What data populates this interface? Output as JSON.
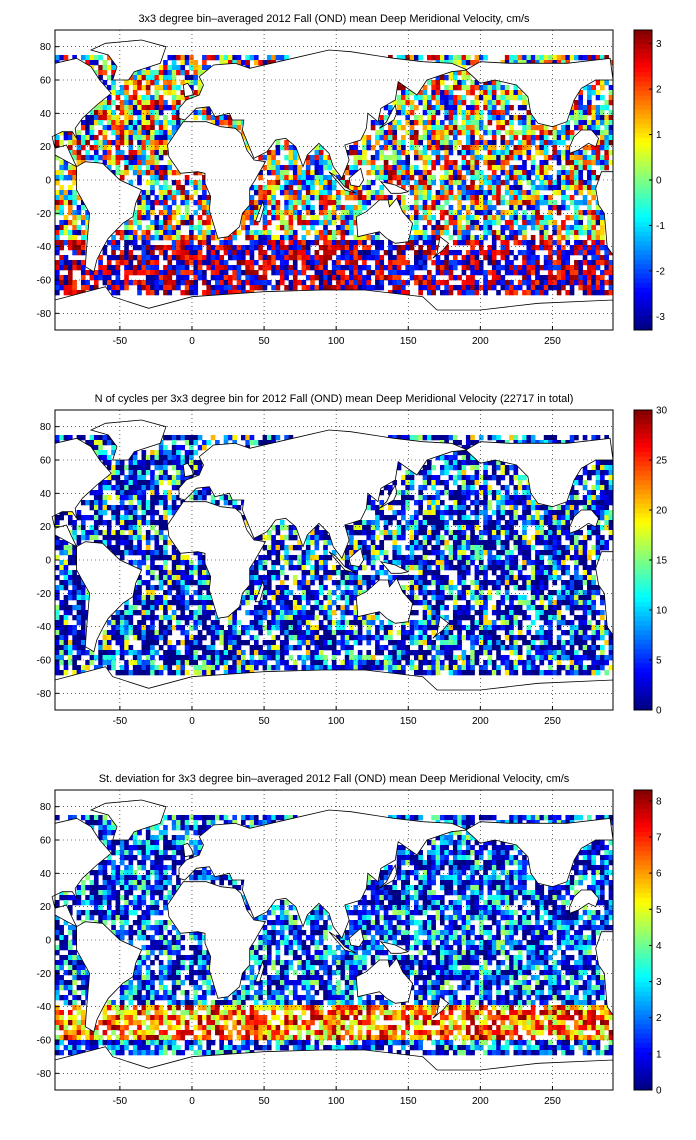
{
  "chart_data": [
    {
      "type": "heatmap",
      "title": "3x3 degree bin–averaged 2012 Fall (OND) mean Deep Meridional Velocity, cm/s",
      "xlim": [
        -95,
        292
      ],
      "ylim": [
        -90,
        90
      ],
      "x_ticks": [
        "-50",
        "0",
        "50",
        "100",
        "150",
        "200",
        "250"
      ],
      "y_ticks": [
        "80",
        "60",
        "40",
        "20",
        "0",
        "-20",
        "-40",
        "-60",
        "-80"
      ],
      "grid": "dotted",
      "colormap": "jet",
      "colorbar": {
        "min": -3.3,
        "max": 3.3,
        "ticks": [
          "3",
          "2",
          "1",
          "0",
          "-1",
          "-2",
          "-3"
        ]
      },
      "bin_size_deg": 3,
      "seed": 11
    },
    {
      "type": "heatmap",
      "title": "N of cycles per 3x3 degree bin for 2012 Fall (OND) mean Deep Meridional Velocity (22717 in total)",
      "xlim": [
        -95,
        292
      ],
      "ylim": [
        -90,
        90
      ],
      "x_ticks": [
        "-50",
        "0",
        "50",
        "100",
        "150",
        "200",
        "250"
      ],
      "y_ticks": [
        "80",
        "60",
        "40",
        "20",
        "0",
        "-20",
        "-40",
        "-60",
        "-80"
      ],
      "grid": "dotted",
      "colormap": "jet",
      "colorbar": {
        "min": 0,
        "max": 30,
        "ticks": [
          "30",
          "25",
          "20",
          "15",
          "10",
          "5",
          "0"
        ]
      },
      "bin_size_deg": 3,
      "seed": 23
    },
    {
      "type": "heatmap",
      "title": "St. deviation for 3x3 degree bin–averaged 2012 Fall (OND) mean Deep Meridional Velocity, cm/s",
      "xlim": [
        -95,
        292
      ],
      "ylim": [
        -90,
        90
      ],
      "x_ticks": [
        "-50",
        "0",
        "50",
        "100",
        "150",
        "200",
        "250"
      ],
      "y_ticks": [
        "80",
        "60",
        "40",
        "20",
        "0",
        "-20",
        "-40",
        "-60",
        "-80"
      ],
      "grid": "dotted",
      "colormap": "jet",
      "colorbar": {
        "min": 0,
        "max": 8.3,
        "ticks": [
          "8",
          "7",
          "6",
          "5",
          "4",
          "3",
          "2",
          "1",
          "0"
        ]
      },
      "bin_size_deg": 3,
      "seed": 37
    }
  ]
}
